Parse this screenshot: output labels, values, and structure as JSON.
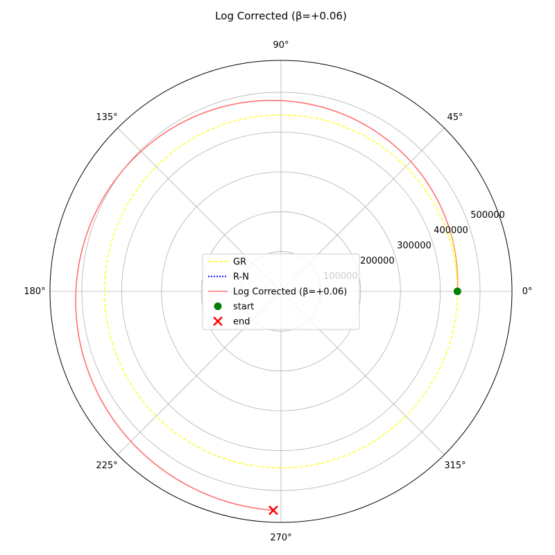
{
  "chart_data": {
    "type": "line",
    "projection": "polar",
    "title": "Log Corrected (β=+0.06)",
    "r_max": 580000,
    "r_ticks": [
      {
        "value": 100000,
        "label": "100000"
      },
      {
        "value": 200000,
        "label": "200000"
      },
      {
        "value": 300000,
        "label": "300000"
      },
      {
        "value": 400000,
        "label": "400000"
      },
      {
        "value": 500000,
        "label": "500000"
      }
    ],
    "theta_ticks": [
      {
        "deg": 0,
        "label": "0°"
      },
      {
        "deg": 45,
        "label": "45°"
      },
      {
        "deg": 90,
        "label": "90°"
      },
      {
        "deg": 135,
        "label": "135°"
      },
      {
        "deg": 180,
        "label": "180°"
      },
      {
        "deg": 225,
        "label": "225°"
      },
      {
        "deg": 270,
        "label": "270°"
      },
      {
        "deg": 315,
        "label": "315°"
      }
    ],
    "grid": true,
    "legend_position": "center",
    "series": [
      {
        "name": "GR",
        "style": "dashed",
        "color": "#ffff00",
        "kind": "circle",
        "r": 443000
      },
      {
        "name": "R-N",
        "style": "dotted",
        "color": "#0000ff",
        "kind": "hidden"
      },
      {
        "name": "Log Corrected (β=+0.06)",
        "style": "solid",
        "color": "#ff7070",
        "kind": "spiral",
        "theta_start_deg": 0,
        "theta_end_deg": 268,
        "r_start": 443000,
        "r_end": 550000
      },
      {
        "name": "start",
        "marker": "circle",
        "color": "#008000",
        "theta_deg": 0,
        "r": 443000
      },
      {
        "name": "end",
        "marker": "x",
        "color": "#ff0000",
        "theta_deg": 268,
        "r": 550000
      }
    ],
    "overlap_segment": {
      "color": "#ffb040",
      "theta_start_deg": 0,
      "theta_end_deg": 20
    }
  }
}
